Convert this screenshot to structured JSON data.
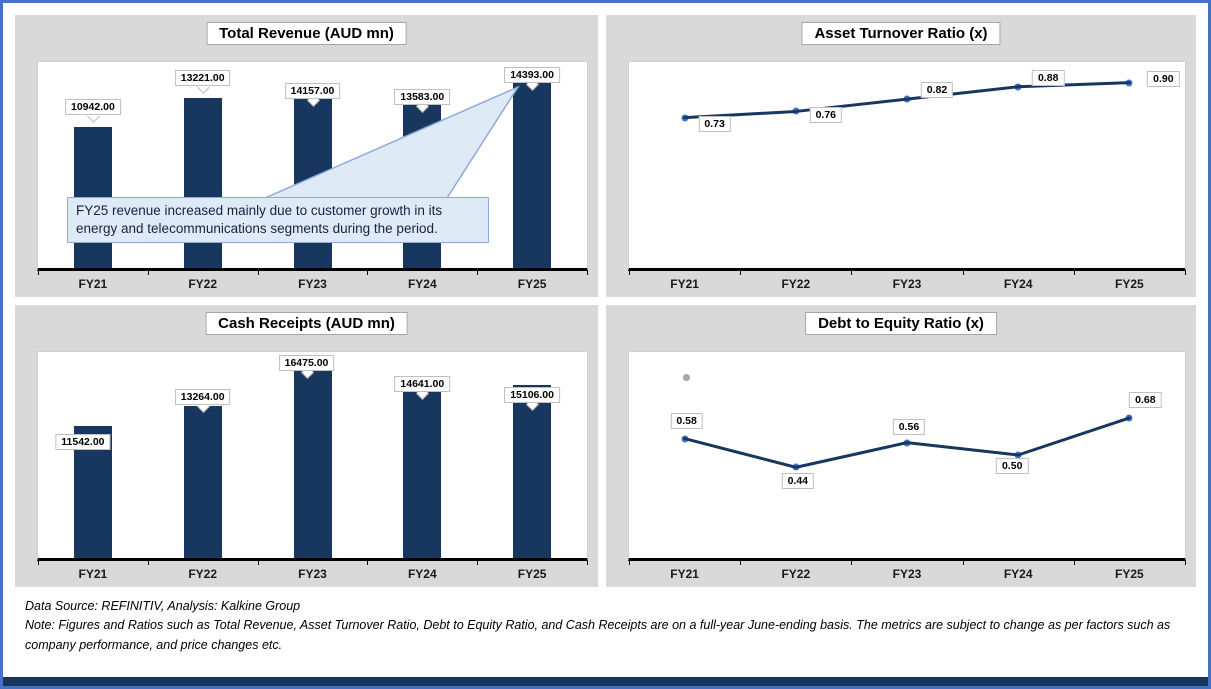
{
  "footer": {
    "source_line": "Data Source: REFINITIV, Analysis: Kalkine Group",
    "note_line": "Note: Figures and Ratios such as Total Revenue, Asset Turnover Ratio, Debt to Equity Ratio, and Cash Receipts are on a full-year June-ending basis. The metrics are subject to change as per factors such as company performance, and price changes etc."
  },
  "colors": {
    "accent_navy": "#17375E",
    "marker_blue": "#4472C4",
    "panel_gray": "#D9D9D9",
    "annotation_fill": "#DEEAF6",
    "annotation_border": "#8EAADB",
    "outer_border_blue": "#4472C4"
  },
  "chart_data": [
    {
      "id": "total-revenue",
      "type": "bar",
      "title": "Total Revenue (AUD mn)",
      "categories": [
        "FY21",
        "FY22",
        "FY23",
        "FY24",
        "FY25"
      ],
      "values": [
        10942,
        13221,
        14157,
        13583,
        14393
      ],
      "value_labels": [
        "10942.00",
        "13221.00",
        "14157.00",
        "13583.00",
        "14393.00"
      ],
      "xlabel": "",
      "ylabel": "",
      "ylim": [
        0,
        16000
      ],
      "grid": false,
      "legend": "none",
      "annotation": "FY25 revenue increased mainly due to customer growth in its energy and telecommunications segments during the period."
    },
    {
      "id": "asset-turnover-ratio",
      "type": "line",
      "title": "Asset Turnover Ratio (x)",
      "categories": [
        "FY21",
        "FY22",
        "FY23",
        "FY24",
        "FY25"
      ],
      "values": [
        0.73,
        0.76,
        0.82,
        0.88,
        0.9
      ],
      "value_labels": [
        "0.73",
        "0.76",
        "0.82",
        "0.88",
        "0.90"
      ],
      "xlabel": "",
      "ylabel": "",
      "ylim": [
        0,
        1.0
      ],
      "grid": false,
      "legend": "none"
    },
    {
      "id": "cash-receipts",
      "type": "bar",
      "title": "Cash Receipts (AUD mn)",
      "categories": [
        "FY21",
        "FY22",
        "FY23",
        "FY24",
        "FY25"
      ],
      "values": [
        11542,
        13264,
        16475,
        14641,
        15106
      ],
      "value_labels": [
        "11542.00",
        "13264.00",
        "16475.00",
        "14641.00",
        "15106.00"
      ],
      "xlabel": "",
      "ylabel": "",
      "ylim": [
        0,
        18000
      ],
      "grid": false,
      "legend": "none"
    },
    {
      "id": "debt-to-equity-ratio",
      "type": "line",
      "title": "Debt to Equity Ratio (x)",
      "categories": [
        "FY21",
        "FY22",
        "FY23",
        "FY24",
        "FY25"
      ],
      "values": [
        0.58,
        0.44,
        0.56,
        0.5,
        0.68
      ],
      "value_labels": [
        "0.58",
        "0.44",
        "0.56",
        "0.50",
        "0.68"
      ],
      "xlabel": "",
      "ylabel": "",
      "ylim": [
        0,
        1.0
      ],
      "grid": false,
      "legend": "none"
    }
  ]
}
